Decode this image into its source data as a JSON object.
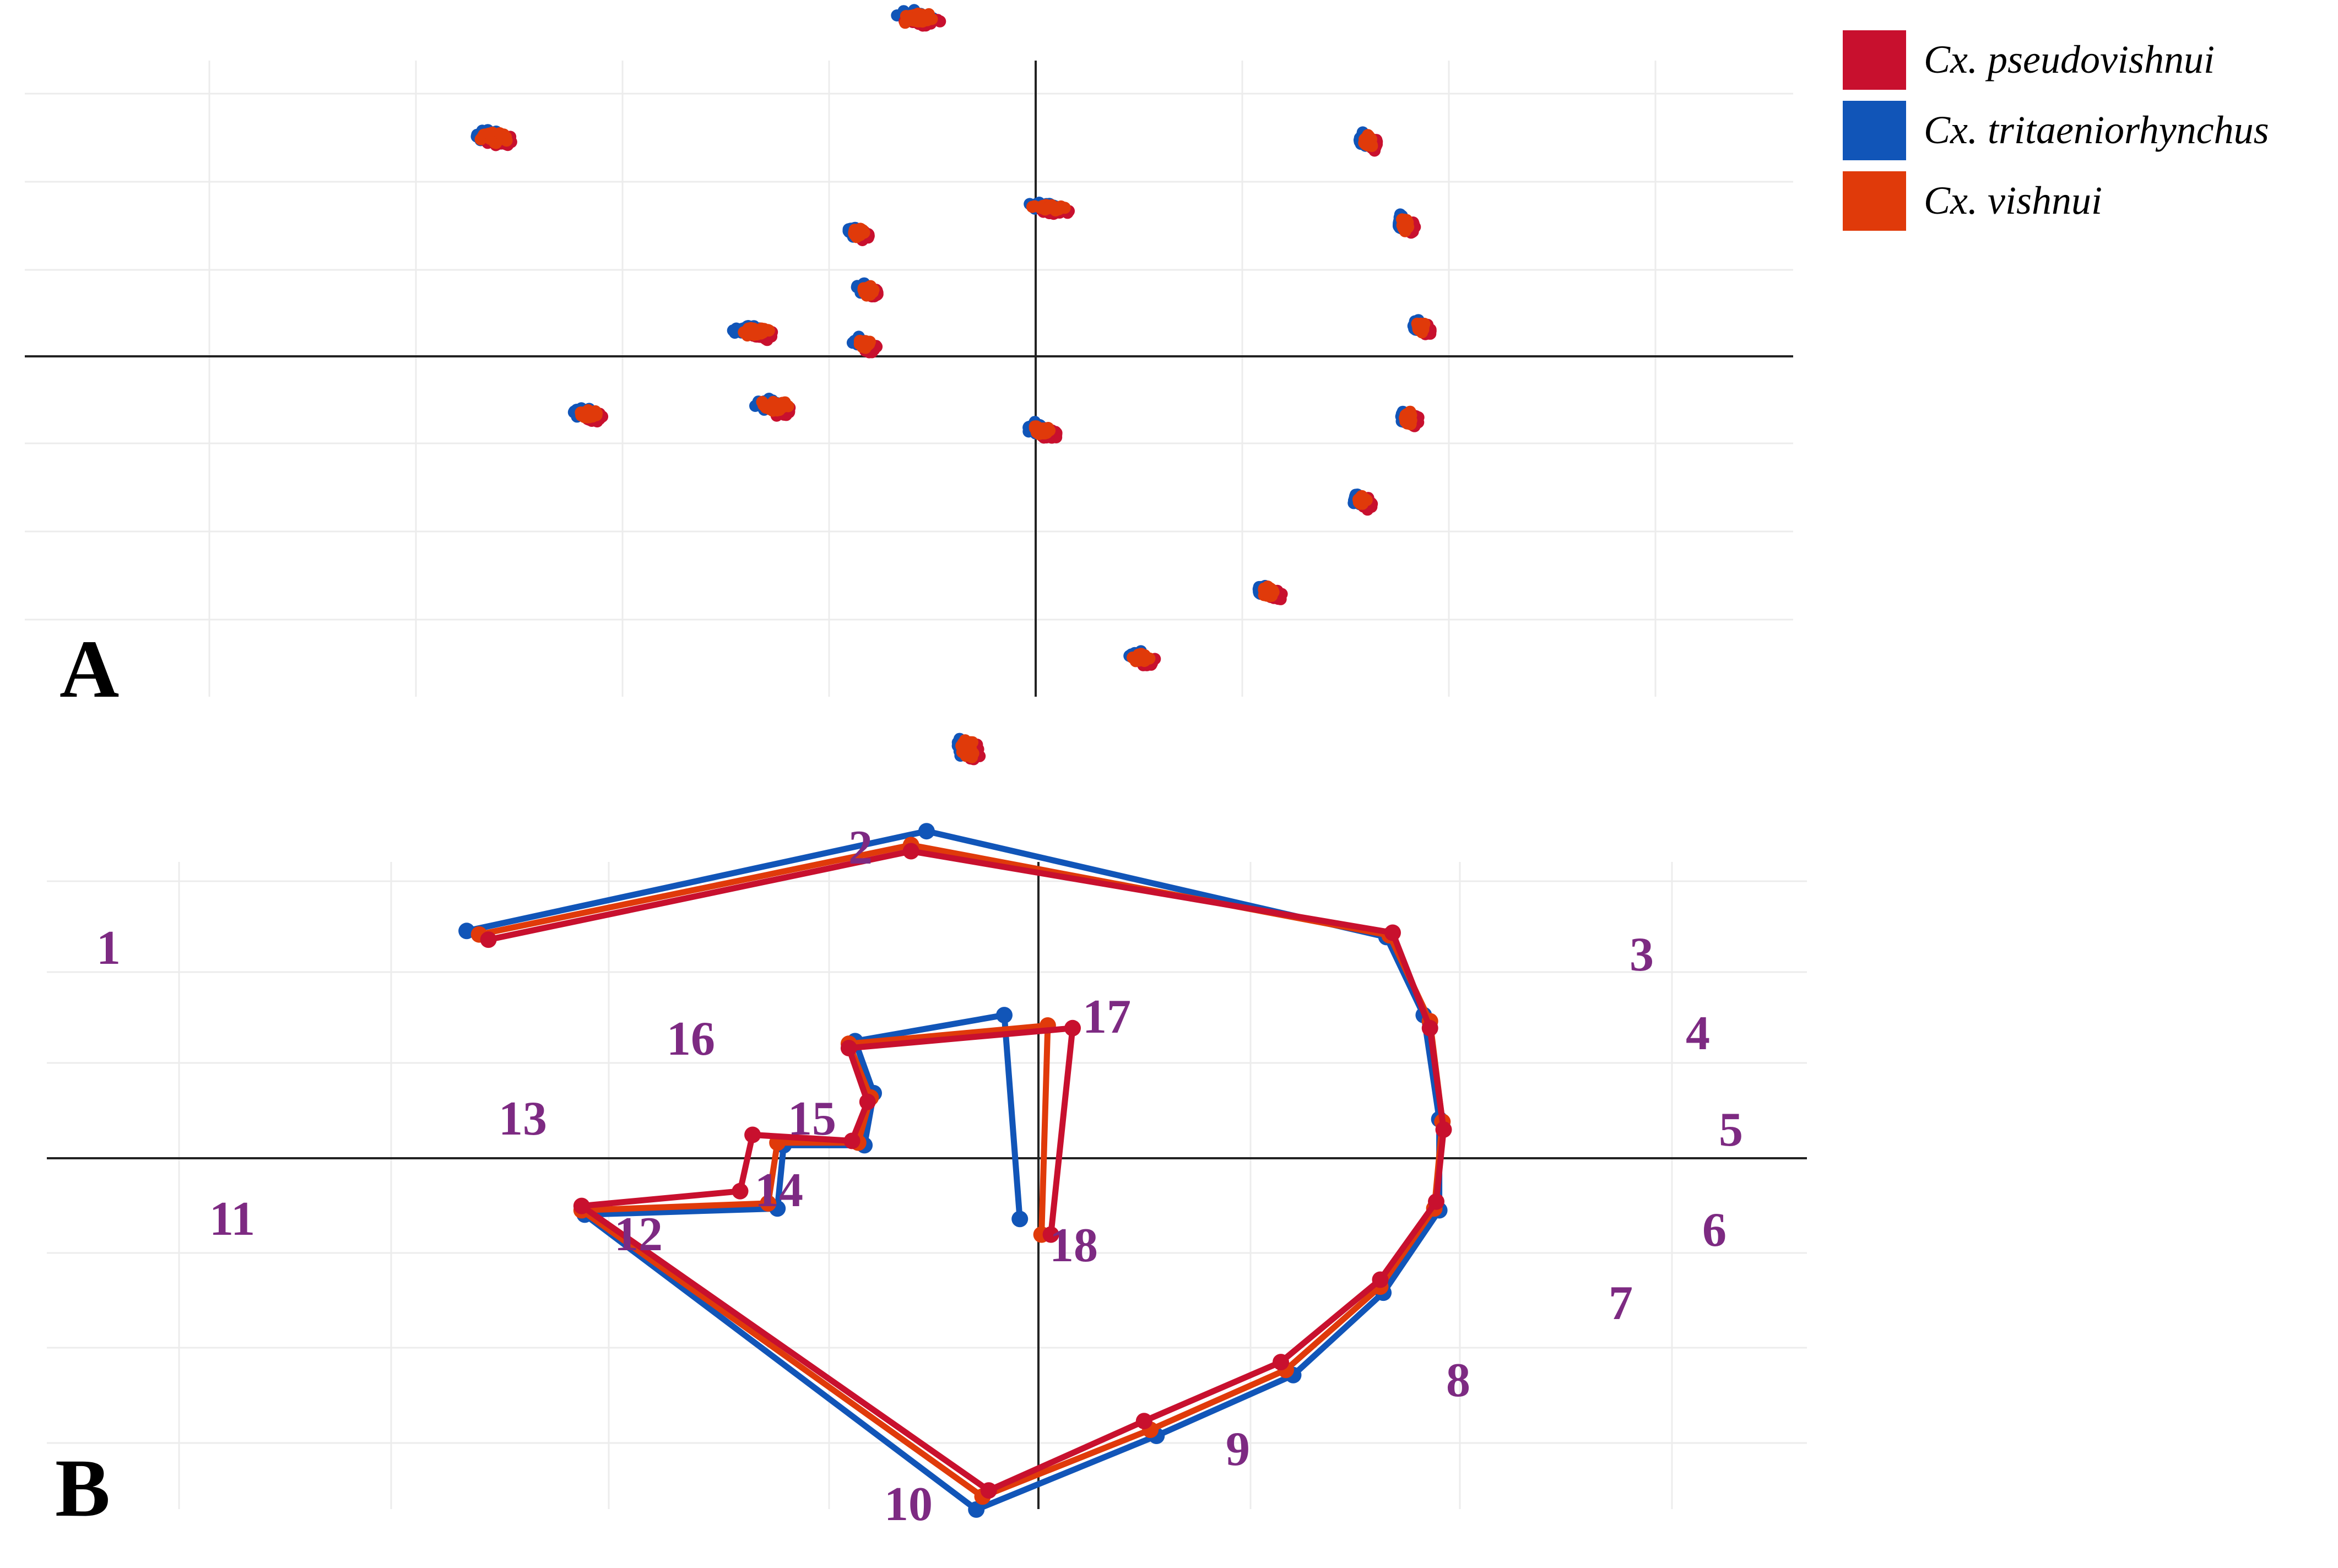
{
  "colors": {
    "Cx. pseudovishnui": "#c8102e",
    "Cx. tritaeniorhynchus": "#1155b8",
    "Cx. vishnui": "#e03a0a",
    "landmark_label": "#7d2a82"
  },
  "legend": {
    "items": [
      {
        "label": "Cx. pseudovishnui",
        "color": "#c8102e"
      },
      {
        "label": "Cx. tritaeniorhynchus",
        "color": "#1155b8"
      },
      {
        "label": "Cx. vishnui",
        "color": "#e03a0a"
      }
    ]
  },
  "chart_data": [
    {
      "panel": "A",
      "type": "scatter",
      "title": "",
      "xlabel": "",
      "ylabel": "",
      "xlim": [
        -1.0,
        0.75
      ],
      "ylim": [
        -0.6,
        0.52
      ],
      "grid": true,
      "legend_position": "top-right",
      "series_names": [
        "Cx. pseudovishnui",
        "Cx. tritaeniorhynchus",
        "Cx. vishnui"
      ],
      "landmark_cluster_centers": [
        {
          "landmark": 1,
          "x": -0.87,
          "y": 0.265
        },
        {
          "landmark": 2,
          "x": -0.19,
          "y": 0.41
        },
        {
          "landmark": 3,
          "x": 0.535,
          "y": 0.26
        },
        {
          "landmark": 4,
          "x": 0.595,
          "y": 0.16
        },
        {
          "landmark": 5,
          "x": 0.62,
          "y": 0.035
        },
        {
          "landmark": 6,
          "x": 0.6,
          "y": -0.075
        },
        {
          "landmark": 7,
          "x": 0.525,
          "y": -0.175
        },
        {
          "landmark": 8,
          "x": 0.375,
          "y": -0.285
        },
        {
          "landmark": 9,
          "x": 0.17,
          "y": -0.365
        },
        {
          "landmark": 10,
          "x": -0.11,
          "y": -0.475
        },
        {
          "landmark": 11,
          "x": -0.72,
          "y": -0.07
        },
        {
          "landmark": 12,
          "x": -0.42,
          "y": -0.06
        },
        {
          "landmark": 13,
          "x": -0.45,
          "y": 0.03
        },
        {
          "landmark": 14,
          "x": -0.275,
          "y": 0.015
        },
        {
          "landmark": 15,
          "x": -0.27,
          "y": 0.08
        },
        {
          "landmark": 16,
          "x": -0.285,
          "y": 0.15
        },
        {
          "landmark": 17,
          "x": 0.02,
          "y": 0.18
        },
        {
          "landmark": 18,
          "x": 0.01,
          "y": -0.09
        }
      ]
    },
    {
      "panel": "B",
      "type": "line",
      "title": "",
      "xlabel": "",
      "ylabel": "",
      "xlim": [
        -1.0,
        0.75
      ],
      "ylim": [
        -0.55,
        0.47
      ],
      "grid": true,
      "outline_order": [
        1,
        2,
        3,
        4,
        5,
        6,
        7,
        8,
        9,
        10,
        11,
        12,
        13,
        14,
        15,
        16,
        17,
        18
      ],
      "landmark_labels": [
        "1",
        "2",
        "3",
        "4",
        "5",
        "6",
        "7",
        "8",
        "9",
        "10",
        "11",
        "12",
        "13",
        "14",
        "15",
        "16",
        "17",
        "18"
      ],
      "series": [
        {
          "name": "Cx. tritaeniorhynchus",
          "points": [
            [
              -0.92,
              0.262
            ],
            [
              -0.18,
              0.377
            ],
            [
              0.56,
              0.255
            ],
            [
              0.62,
              0.165
            ],
            [
              0.645,
              0.045
            ],
            [
              0.645,
              -0.06
            ],
            [
              0.555,
              -0.155
            ],
            [
              0.41,
              -0.25
            ],
            [
              0.19,
              -0.32
            ],
            [
              -0.1,
              -0.405
            ],
            [
              -0.73,
              -0.065
            ],
            [
              -0.42,
              -0.058
            ],
            [
              -0.41,
              0.015
            ],
            [
              -0.28,
              0.015
            ],
            [
              -0.265,
              0.075
            ],
            [
              -0.295,
              0.135
            ],
            [
              -0.055,
              0.165
            ],
            [
              -0.03,
              -0.07
            ]
          ]
        },
        {
          "name": "Cx. vishnui",
          "points": [
            [
              -0.9,
              0.258
            ],
            [
              -0.205,
              0.361
            ],
            [
              0.565,
              0.257
            ],
            [
              0.63,
              0.158
            ],
            [
              0.65,
              0.042
            ],
            [
              0.637,
              -0.058
            ],
            [
              0.55,
              -0.148
            ],
            [
              0.398,
              -0.244
            ],
            [
              0.18,
              -0.313
            ],
            [
              -0.09,
              -0.39
            ],
            [
              -0.735,
              -0.06
            ],
            [
              -0.435,
              -0.052
            ],
            [
              -0.42,
              0.018
            ],
            [
              -0.29,
              0.018
            ],
            [
              -0.27,
              0.07
            ],
            [
              -0.305,
              0.132
            ],
            [
              0.015,
              0.153
            ],
            [
              0.005,
              -0.088
            ]
          ]
        },
        {
          "name": "Cx. pseudovishnui",
          "points": [
            [
              -0.885,
              0.252
            ],
            [
              -0.205,
              0.354
            ],
            [
              0.57,
              0.26
            ],
            [
              0.63,
              0.15
            ],
            [
              0.652,
              0.033
            ],
            [
              0.64,
              -0.05
            ],
            [
              0.55,
              -0.14
            ],
            [
              0.39,
              -0.235
            ],
            [
              0.17,
              -0.303
            ],
            [
              -0.08,
              -0.383
            ],
            [
              -0.735,
              -0.055
            ],
            [
              -0.48,
              -0.038
            ],
            [
              -0.46,
              0.027
            ],
            [
              -0.3,
              0.02
            ],
            [
              -0.275,
              0.065
            ],
            [
              -0.305,
              0.127
            ],
            [
              0.055,
              0.15
            ],
            [
              0.02,
              -0.088
            ]
          ]
        }
      ]
    }
  ]
}
